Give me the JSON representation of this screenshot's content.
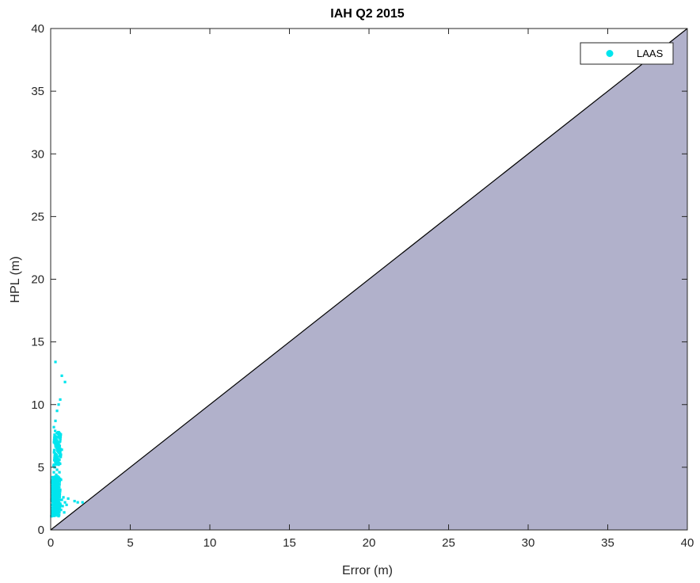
{
  "colors": {
    "background": "#ffffff",
    "axes": "#262626",
    "marker": "#00e5ee",
    "shaded_region": "#b1b1cb",
    "diagonal": "#000000"
  },
  "chart_data": {
    "type": "scatter",
    "title": "IAH Q2 2015",
    "xlabel": "Error (m)",
    "ylabel": "HPL (m)",
    "xlim": [
      0,
      40
    ],
    "ylim": [
      0,
      40
    ],
    "xticks": [
      0,
      5,
      10,
      15,
      20,
      25,
      30,
      35,
      40
    ],
    "yticks": [
      0,
      5,
      10,
      15,
      20,
      25,
      30,
      35,
      40
    ],
    "grid": false,
    "legend_position": "top-right",
    "shaded_region": "below y = x diagonal",
    "series": [
      {
        "name": "LAAS",
        "color": "#00e5ee",
        "points": [
          [
            0.3,
            13.4
          ],
          [
            0.7,
            12.3
          ],
          [
            0.9,
            11.8
          ],
          [
            0.6,
            10.4
          ],
          [
            0.5,
            10.0
          ],
          [
            0.4,
            9.5
          ],
          [
            0.3,
            8.7
          ],
          [
            0.2,
            8.2
          ],
          [
            0.25,
            7.6
          ],
          [
            0.45,
            7.4
          ],
          [
            0.35,
            7.2
          ],
          [
            0.55,
            7.0
          ],
          [
            0.3,
            6.8
          ],
          [
            0.5,
            6.6
          ],
          [
            0.4,
            6.4
          ],
          [
            0.6,
            6.2
          ],
          [
            0.35,
            6.0
          ],
          [
            0.45,
            5.8
          ],
          [
            0.55,
            5.6
          ],
          [
            0.3,
            5.4
          ],
          [
            0.5,
            5.2
          ],
          [
            0.25,
            5.0
          ],
          [
            0.4,
            4.8
          ],
          [
            0.2,
            4.6
          ],
          [
            0.35,
            4.4
          ],
          [
            0.15,
            4.2
          ],
          [
            0.3,
            4.0
          ],
          [
            0.45,
            3.8
          ],
          [
            0.2,
            3.6
          ],
          [
            0.35,
            3.4
          ],
          [
            0.1,
            3.2
          ],
          [
            0.25,
            3.0
          ],
          [
            0.4,
            2.9
          ],
          [
            0.55,
            2.8
          ],
          [
            0.15,
            2.7
          ],
          [
            0.3,
            2.6
          ],
          [
            0.45,
            2.5
          ],
          [
            0.6,
            2.4
          ],
          [
            0.2,
            2.3
          ],
          [
            0.35,
            2.2
          ],
          [
            0.5,
            2.1
          ],
          [
            0.1,
            2.0
          ],
          [
            0.25,
            1.9
          ],
          [
            0.4,
            1.8
          ],
          [
            0.55,
            1.7
          ],
          [
            0.15,
            1.6
          ],
          [
            0.3,
            1.5
          ],
          [
            0.45,
            1.4
          ],
          [
            0.2,
            1.3
          ],
          [
            0.35,
            1.2
          ],
          [
            0.5,
            1.1
          ],
          [
            0.05,
            3.8
          ],
          [
            0.05,
            2.4
          ],
          [
            0.08,
            1.5
          ],
          [
            0.62,
            2.0
          ],
          [
            0.7,
            2.4
          ],
          [
            0.8,
            2.6
          ],
          [
            0.9,
            2.2
          ],
          [
            1.0,
            2.0
          ],
          [
            1.1,
            2.5
          ],
          [
            1.5,
            2.3
          ],
          [
            1.7,
            2.2
          ],
          [
            2.0,
            2.2
          ],
          [
            0.65,
            1.6
          ],
          [
            0.75,
            1.9
          ],
          [
            0.85,
            1.4
          ],
          [
            0.6,
            3.2
          ],
          [
            0.65,
            4.0
          ],
          [
            0.55,
            4.6
          ],
          [
            0.7,
            6.4
          ],
          [
            0.28,
            7.9
          ],
          [
            0.48,
            7.8
          ],
          [
            0.38,
            5.9
          ],
          [
            0.18,
            5.1
          ],
          [
            0.42,
            3.3
          ]
        ]
      }
    ]
  }
}
